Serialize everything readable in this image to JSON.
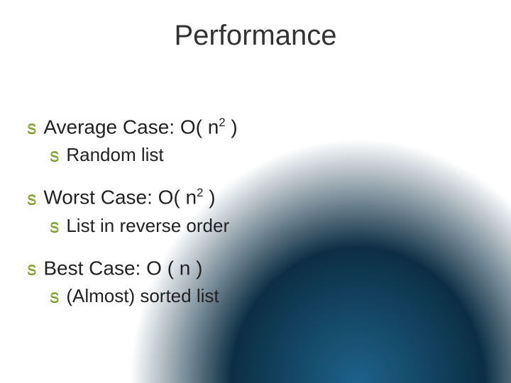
{
  "title": "Performance",
  "bullet_color": "#8fb73e",
  "title_color": "#333333",
  "text_color": "#222222",
  "background_gradient_center": "#1d628a",
  "background_gradient_outer": "#0c2e44",
  "items": [
    {
      "label_pre": "Average Case: O( n",
      "sup": "2",
      "label_post": " )",
      "sub": {
        "label": "Random list"
      }
    },
    {
      "label_pre": "Worst Case: O( n",
      "sup": "2",
      "label_post": " )",
      "sub": {
        "label": "List in reverse order"
      }
    },
    {
      "label_pre": "Best Case: O ( n )",
      "sup": "",
      "label_post": "",
      "sub": {
        "label": "(Almost) sorted list"
      }
    }
  ],
  "bullet_glyph": "S"
}
